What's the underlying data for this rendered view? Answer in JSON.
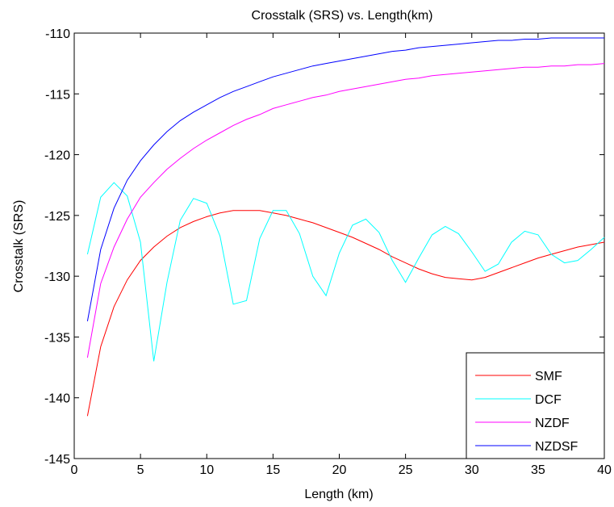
{
  "chart_data": {
    "type": "line",
    "title": "Crosstalk (SRS) vs. Length(km)",
    "xlabel": "Length (km)",
    "ylabel": "Crosstalk (SRS)",
    "xlim": [
      0,
      40
    ],
    "ylim": [
      -145,
      -110
    ],
    "xticks": [
      0,
      5,
      10,
      15,
      20,
      25,
      30,
      35,
      40
    ],
    "yticks": [
      -110,
      -115,
      -120,
      -125,
      -130,
      -135,
      -140,
      -145
    ],
    "grid": false,
    "legend_position": "bottom-right",
    "x": [
      1,
      2,
      3,
      4,
      5,
      6,
      7,
      8,
      9,
      10,
      11,
      12,
      13,
      14,
      15,
      16,
      17,
      18,
      19,
      20,
      21,
      22,
      23,
      24,
      25,
      26,
      27,
      28,
      29,
      30,
      31,
      32,
      33,
      34,
      35,
      36,
      37,
      38,
      39,
      40
    ],
    "series": [
      {
        "name": "SMF",
        "color": "#ff0000",
        "values": [
          -141.5,
          -135.8,
          -132.5,
          -130.3,
          -128.7,
          -127.6,
          -126.7,
          -126.0,
          -125.5,
          -125.1,
          -124.8,
          -124.6,
          -124.6,
          -124.6,
          -124.8,
          -125.0,
          -125.3,
          -125.6,
          -126.0,
          -126.4,
          -126.8,
          -127.3,
          -127.8,
          -128.4,
          -128.9,
          -129.4,
          -129.8,
          -130.1,
          -130.2,
          -130.3,
          -130.1,
          -129.7,
          -129.3,
          -128.9,
          -128.5,
          -128.2,
          -127.9,
          -127.6,
          -127.4,
          -127.2
        ]
      },
      {
        "name": "DCF",
        "color": "#00ffff",
        "values": [
          -128.2,
          -123.5,
          -122.3,
          -123.4,
          -127.2,
          -137.0,
          -130.5,
          -125.4,
          -123.6,
          -124.0,
          -126.7,
          -132.3,
          -132.0,
          -126.9,
          -124.6,
          -124.6,
          -126.5,
          -130.0,
          -131.6,
          -128.1,
          -125.8,
          -125.3,
          -126.4,
          -128.7,
          -130.5,
          -128.5,
          -126.6,
          -125.9,
          -126.5,
          -128.0,
          -129.6,
          -129.0,
          -127.2,
          -126.3,
          -126.6,
          -128.2,
          -128.9,
          -128.7,
          -127.8,
          -126.8
        ]
      },
      {
        "name": "NZDF",
        "color": "#ff00ff",
        "values": [
          -136.7,
          -130.6,
          -127.6,
          -125.3,
          -123.5,
          -122.3,
          -121.2,
          -120.3,
          -119.5,
          -118.8,
          -118.2,
          -117.6,
          -117.1,
          -116.7,
          -116.2,
          -115.9,
          -115.6,
          -115.3,
          -115.1,
          -114.8,
          -114.6,
          -114.4,
          -114.2,
          -114.0,
          -113.8,
          -113.7,
          -113.5,
          -113.4,
          -113.3,
          -113.2,
          -113.1,
          -113.0,
          -112.9,
          -112.8,
          -112.8,
          -112.7,
          -112.7,
          -112.6,
          -112.6,
          -112.5
        ]
      },
      {
        "name": "NZDSF",
        "color": "#0000ff",
        "values": [
          -133.7,
          -127.8,
          -124.4,
          -122.1,
          -120.5,
          -119.2,
          -118.1,
          -117.2,
          -116.5,
          -115.9,
          -115.3,
          -114.8,
          -114.4,
          -114.0,
          -113.6,
          -113.3,
          -113.0,
          -112.7,
          -112.5,
          -112.3,
          -112.1,
          -111.9,
          -111.7,
          -111.5,
          -111.4,
          -111.2,
          -111.1,
          -111.0,
          -110.9,
          -110.8,
          -110.7,
          -110.6,
          -110.6,
          -110.5,
          -110.5,
          -110.4,
          -110.4,
          -110.4,
          -110.4,
          -110.4
        ]
      }
    ]
  }
}
